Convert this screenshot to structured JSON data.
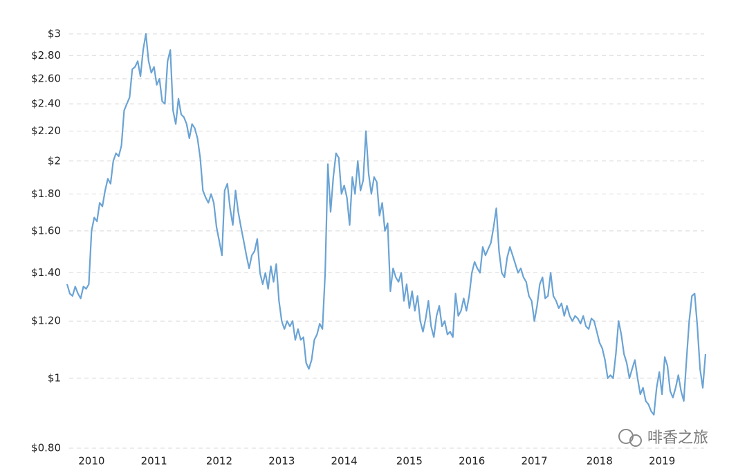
{
  "chart_data": {
    "type": "line",
    "log_y": true,
    "grid": true,
    "ylim": [
      0.8,
      3
    ],
    "yticks": [
      {
        "value": 0.8,
        "label": "$0.80"
      },
      {
        "value": 1,
        "label": "$1"
      },
      {
        "value": 1.2,
        "label": "$1.20"
      },
      {
        "value": 1.4,
        "label": "$1.40"
      },
      {
        "value": 1.6,
        "label": "$1.60"
      },
      {
        "value": 1.8,
        "label": "$1.80"
      },
      {
        "value": 2,
        "label": "$2"
      },
      {
        "value": 2.2,
        "label": "$2.20"
      },
      {
        "value": 2.4,
        "label": "$2.40"
      },
      {
        "value": 2.6,
        "label": "$2.60"
      },
      {
        "value": 2.8,
        "label": "$2.80"
      },
      {
        "value": 3,
        "label": "$3"
      }
    ],
    "watermark": "啡香之旅",
    "categories": [
      null,
      null,
      null,
      null,
      null,
      null,
      null,
      null,
      null,
      "2010",
      null,
      null,
      null,
      null,
      null,
      null,
      null,
      null,
      null,
      null,
      null,
      null,
      null,
      null,
      null,
      null,
      null,
      null,
      null,
      null,
      null,
      null,
      "2011",
      null,
      null,
      null,
      null,
      null,
      null,
      null,
      null,
      null,
      null,
      null,
      null,
      null,
      null,
      null,
      null,
      null,
      null,
      null,
      null,
      null,
      null,
      null,
      "2012",
      null,
      null,
      null,
      null,
      null,
      null,
      null,
      null,
      null,
      null,
      null,
      null,
      null,
      null,
      null,
      null,
      null,
      null,
      null,
      null,
      null,
      null,
      "2013",
      null,
      null,
      null,
      null,
      null,
      null,
      null,
      null,
      null,
      null,
      null,
      null,
      null,
      null,
      null,
      null,
      null,
      null,
      null,
      null,
      null,
      null,
      "2014",
      null,
      null,
      null,
      null,
      null,
      null,
      null,
      null,
      null,
      null,
      null,
      null,
      null,
      null,
      null,
      null,
      null,
      null,
      null,
      null,
      null,
      null,
      null,
      "2015",
      null,
      null,
      null,
      null,
      null,
      null,
      null,
      null,
      null,
      null,
      null,
      null,
      null,
      null,
      null,
      null,
      null,
      null,
      null,
      null,
      null,
      null,
      "2016",
      null,
      null,
      null,
      null,
      null,
      null,
      null,
      null,
      null,
      null,
      null,
      null,
      null,
      null,
      null,
      null,
      null,
      null,
      null,
      null,
      null,
      null,
      "2017",
      null,
      null,
      null,
      null,
      null,
      null,
      null,
      null,
      null,
      null,
      null,
      null,
      null,
      null,
      null,
      null,
      null,
      null,
      null,
      null,
      null,
      null,
      null,
      "2018",
      null,
      null,
      null,
      null,
      null,
      null,
      null,
      null,
      null,
      null,
      null,
      null,
      null,
      null,
      null,
      null,
      null,
      null,
      null,
      null,
      null,
      null,
      "2019",
      null,
      null,
      null,
      null,
      null,
      null,
      null,
      null,
      null,
      null,
      null,
      null,
      null,
      null,
      null,
      null
    ],
    "series": [
      {
        "color": "#6aa3d4",
        "values": [
          1.35,
          1.31,
          1.3,
          1.34,
          1.31,
          1.29,
          1.34,
          1.33,
          1.35,
          1.6,
          1.67,
          1.65,
          1.75,
          1.73,
          1.82,
          1.89,
          1.86,
          2.0,
          2.05,
          2.03,
          2.1,
          2.35,
          2.4,
          2.45,
          2.68,
          2.7,
          2.75,
          2.62,
          2.85,
          3.0,
          2.75,
          2.65,
          2.7,
          2.55,
          2.6,
          2.42,
          2.4,
          2.75,
          2.85,
          2.35,
          2.25,
          2.44,
          2.32,
          2.3,
          2.25,
          2.15,
          2.25,
          2.22,
          2.15,
          2.02,
          1.82,
          1.78,
          1.75,
          1.8,
          1.75,
          1.62,
          1.55,
          1.48,
          1.82,
          1.86,
          1.72,
          1.63,
          1.82,
          1.7,
          1.62,
          1.55,
          1.48,
          1.42,
          1.48,
          1.5,
          1.56,
          1.4,
          1.35,
          1.4,
          1.33,
          1.43,
          1.36,
          1.44,
          1.28,
          1.2,
          1.17,
          1.2,
          1.18,
          1.2,
          1.13,
          1.17,
          1.13,
          1.14,
          1.05,
          1.03,
          1.06,
          1.13,
          1.15,
          1.19,
          1.17,
          1.4,
          1.98,
          1.7,
          1.9,
          2.05,
          2.02,
          1.8,
          1.85,
          1.78,
          1.63,
          1.9,
          1.8,
          2.0,
          1.82,
          1.88,
          2.2,
          1.92,
          1.8,
          1.9,
          1.87,
          1.68,
          1.75,
          1.6,
          1.64,
          1.32,
          1.42,
          1.38,
          1.36,
          1.4,
          1.28,
          1.35,
          1.25,
          1.32,
          1.24,
          1.3,
          1.2,
          1.16,
          1.21,
          1.28,
          1.18,
          1.14,
          1.22,
          1.26,
          1.18,
          1.2,
          1.15,
          1.16,
          1.14,
          1.31,
          1.22,
          1.24,
          1.29,
          1.24,
          1.3,
          1.4,
          1.45,
          1.42,
          1.4,
          1.52,
          1.48,
          1.51,
          1.54,
          1.62,
          1.72,
          1.5,
          1.4,
          1.38,
          1.47,
          1.52,
          1.48,
          1.44,
          1.4,
          1.42,
          1.38,
          1.36,
          1.3,
          1.28,
          1.2,
          1.26,
          1.35,
          1.38,
          1.29,
          1.3,
          1.4,
          1.3,
          1.28,
          1.25,
          1.27,
          1.22,
          1.26,
          1.22,
          1.2,
          1.22,
          1.21,
          1.19,
          1.22,
          1.18,
          1.17,
          1.21,
          1.2,
          1.16,
          1.12,
          1.1,
          1.06,
          1.0,
          1.01,
          1.0,
          1.08,
          1.2,
          1.15,
          1.08,
          1.05,
          1.0,
          1.03,
          1.06,
          1.0,
          0.95,
          0.97,
          0.93,
          0.92,
          0.9,
          0.89,
          0.97,
          1.02,
          0.95,
          1.07,
          1.04,
          0.96,
          0.94,
          0.97,
          1.01,
          0.96,
          0.93,
          1.06,
          1.2,
          1.3,
          1.31,
          1.18,
          1.03,
          0.97,
          1.08
        ]
      }
    ]
  }
}
